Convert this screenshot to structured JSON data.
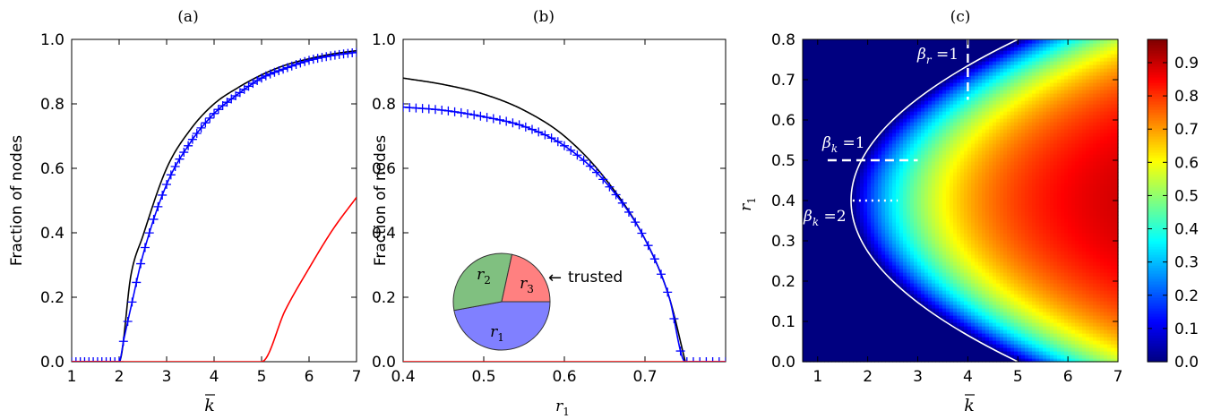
{
  "panels": [
    {
      "label": "(a)",
      "ylabel": "Fraction of nodes",
      "xlabel_base": "k",
      "xlim": [
        1,
        7
      ],
      "ylim": [
        0,
        1.0
      ],
      "xticks": [
        "1",
        "2",
        "3",
        "4",
        "5",
        "6",
        "7"
      ],
      "yticks": [
        "0.0",
        "0.2",
        "0.4",
        "0.6",
        "0.8",
        "1.0"
      ]
    },
    {
      "label": "(b)",
      "ylabel": "Fraction of nodes",
      "xlabel_base": "r",
      "xlabel_sub": "1",
      "xlim": [
        0.4,
        0.8
      ],
      "ylim": [
        0,
        1.0
      ],
      "xticks": [
        "0.4",
        "0.5",
        "0.6",
        "0.7"
      ],
      "yticks": [
        "0.0",
        "0.2",
        "0.4",
        "0.6",
        "0.8",
        "1.0"
      ],
      "inset": {
        "slices": [
          {
            "label": "r",
            "sub": "1",
            "fraction": 0.5,
            "color": "#8080ff"
          },
          {
            "label": "r",
            "sub": "2",
            "fraction": 0.3,
            "color": "#80c080"
          },
          {
            "label": "r",
            "sub": "3",
            "fraction": 0.2,
            "color": "#ff8080"
          }
        ],
        "arrow": "←",
        "annotation": "trusted"
      }
    },
    {
      "label": "(c)",
      "ylabel_base": "r",
      "ylabel_sub": "1",
      "xlabel_base": "k",
      "xlim": [
        0.7,
        7
      ],
      "ylim": [
        0,
        0.8
      ],
      "xticks": [
        "1",
        "2",
        "3",
        "4",
        "5",
        "6",
        "7"
      ],
      "yticks": [
        "0.0",
        "0.1",
        "0.2",
        "0.3",
        "0.4",
        "0.5",
        "0.6",
        "0.7",
        "0.8"
      ],
      "colorbar_ticks": [
        "0.0",
        "0.1",
        "0.2",
        "0.3",
        "0.4",
        "0.5",
        "0.6",
        "0.7",
        "0.8",
        "0.9"
      ],
      "annotations": [
        {
          "base": "β",
          "sub": "r",
          "rest": " =1"
        },
        {
          "base": "β",
          "sub": "k",
          "rest": " =1"
        },
        {
          "base": "β",
          "sub": "k",
          "rest": " =2"
        }
      ]
    }
  ],
  "colors": {
    "black_curve": "#000000",
    "blue_curve": "#0000ff",
    "red_curve": "#ff0000",
    "white_overlay": "#ffffff"
  },
  "chart_data": [
    {
      "type": "line",
      "panel": "(a)",
      "xlabel": "k̄",
      "ylabel": "Fraction of nodes",
      "xlim": [
        1,
        7
      ],
      "ylim": [
        0,
        1.0
      ],
      "series": [
        {
          "x": [
            1,
            2,
            2.25,
            2.5,
            3,
            3.5,
            4,
            4.5,
            5,
            5.5,
            6,
            6.5,
            7
          ],
          "y": [
            0,
            0,
            0.27,
            0.39,
            0.6,
            0.72,
            0.8,
            0.85,
            0.89,
            0.92,
            0.94,
            0.955,
            0.965
          ],
          "color": "#000000",
          "style": "line"
        },
        {
          "x": [
            1,
            1.5,
            2,
            2.1,
            2.25,
            2.5,
            3,
            3.5,
            4,
            4.5,
            5,
            5.5,
            6,
            6.5,
            7
          ],
          "y": [
            0,
            0,
            0,
            0.07,
            0.17,
            0.33,
            0.55,
            0.68,
            0.77,
            0.83,
            0.88,
            0.91,
            0.935,
            0.95,
            0.96
          ],
          "color": "#0000ff",
          "style": "line+plus"
        },
        {
          "x": [
            1,
            5,
            5.5,
            6,
            6.5,
            7
          ],
          "y": [
            0,
            0,
            0.16,
            0.29,
            0.41,
            0.51
          ],
          "color": "#ff0000",
          "style": "line"
        }
      ]
    },
    {
      "type": "line",
      "panel": "(b)",
      "xlabel": "r1",
      "ylabel": "Fraction of nodes",
      "xlim": [
        0.4,
        0.8
      ],
      "ylim": [
        0,
        1.0
      ],
      "series": [
        {
          "x": [
            0.4,
            0.45,
            0.5,
            0.55,
            0.6,
            0.65,
            0.7,
            0.73,
            0.75
          ],
          "y": [
            0.88,
            0.86,
            0.83,
            0.78,
            0.7,
            0.57,
            0.38,
            0.2,
            0.0
          ],
          "color": "#000000",
          "style": "line"
        },
        {
          "x": [
            0.4,
            0.45,
            0.5,
            0.55,
            0.6,
            0.65,
            0.7,
            0.73,
            0.75,
            0.8
          ],
          "y": [
            0.79,
            0.78,
            0.76,
            0.73,
            0.67,
            0.56,
            0.38,
            0.2,
            0.0,
            0.0
          ],
          "color": "#0000ff",
          "style": "line+plus"
        },
        {
          "x": [
            0.4,
            0.8
          ],
          "y": [
            0,
            0
          ],
          "color": "#ff0000",
          "style": "line"
        }
      ]
    },
    {
      "type": "heatmap",
      "panel": "(c)",
      "xlabel": "k̄",
      "ylabel": "r1",
      "xlim": [
        0.7,
        7
      ],
      "ylim": [
        0,
        0.8
      ],
      "colormap": "jet",
      "color_range": [
        0,
        0.97
      ],
      "boundary_vertex": {
        "x": 1.667,
        "y": 0.4
      },
      "boundary_edges": [
        {
          "x": 5.0,
          "y": 0.0
        },
        {
          "x": 5.0,
          "y": 0.8
        }
      ],
      "overlays": [
        {
          "label": "β_r =1",
          "style": "dashed",
          "orientation": "vertical",
          "x": 4,
          "y_range": [
            0.65,
            0.8
          ]
        },
        {
          "label": "β_k =1",
          "style": "dashed",
          "orientation": "horizontal",
          "y": 0.5,
          "x_range": [
            1.2,
            3.0
          ]
        },
        {
          "label": "β_k =2",
          "style": "dotted",
          "orientation": "horizontal",
          "y": 0.4,
          "x_range": [
            1.7,
            2.6
          ]
        }
      ]
    }
  ]
}
